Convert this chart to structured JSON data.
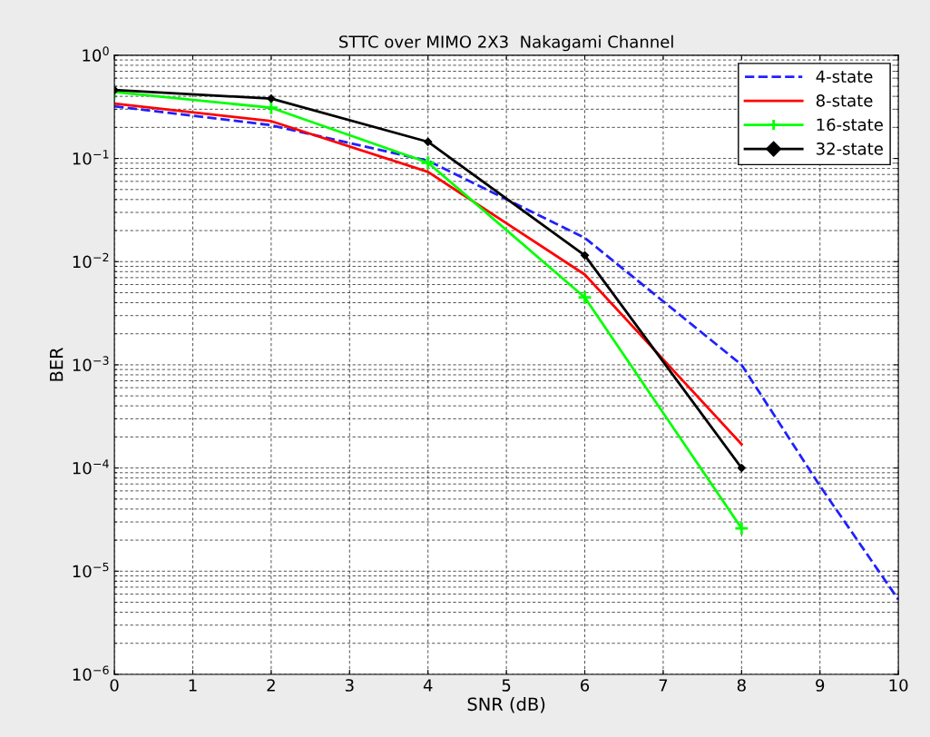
{
  "chart_data": {
    "type": "line",
    "title": "STTC over MIMO 2X3  Nakagami Channel",
    "xlabel": "SNR (dB)",
    "ylabel": "BER",
    "log": "y",
    "grid": true,
    "legend": "top right",
    "xlim": [
      0,
      10
    ],
    "xticks": [
      0,
      1,
      2,
      3,
      4,
      5,
      6,
      7,
      8,
      9,
      10
    ],
    "ylim": [
      1e-06,
      1
    ],
    "yticks": [
      {
        "value": 1e-06,
        "label": "10$^{−6}$"
      },
      {
        "value": 1e-05,
        "label": "10$^{−5}$"
      },
      {
        "value": 0.0001,
        "label": "10$^{−4}$"
      },
      {
        "value": 0.001,
        "label": "10$^{−3}$"
      },
      {
        "value": 0.01,
        "label": "10$^{−2}$"
      },
      {
        "value": 0.1,
        "label": "10$^{−1}$"
      },
      {
        "value": 1,
        "label": "10$^{0}$"
      }
    ],
    "series": [
      {
        "name": "4-state",
        "color": "#2020ff",
        "line_style": "dashed",
        "marker": "none",
        "x": [
          0,
          2,
          4,
          6,
          8,
          9,
          10
        ],
        "values": [
          0.32,
          0.21,
          0.095,
          0.017,
          0.001,
          6.7e-05,
          5.3e-06
        ]
      },
      {
        "name": "8-state",
        "color": "#ff0000",
        "line_style": "solid",
        "marker": "none",
        "x": [
          0,
          2,
          4,
          6,
          8
        ],
        "values": [
          0.34,
          0.23,
          0.074,
          0.0075,
          0.00017
        ]
      },
      {
        "name": "16-state",
        "color": "#00ff00",
        "line_style": "solid",
        "marker": "cross",
        "x": [
          0,
          2,
          4,
          6,
          8
        ],
        "values": [
          0.44,
          0.31,
          0.091,
          0.0045,
          2.6e-05
        ]
      },
      {
        "name": "32-state",
        "color": "#000000",
        "line_style": "solid",
        "marker": "diamond",
        "x": [
          0,
          2,
          4,
          6,
          8
        ],
        "values": [
          0.46,
          0.38,
          0.145,
          0.0115,
          0.0001
        ]
      }
    ]
  }
}
